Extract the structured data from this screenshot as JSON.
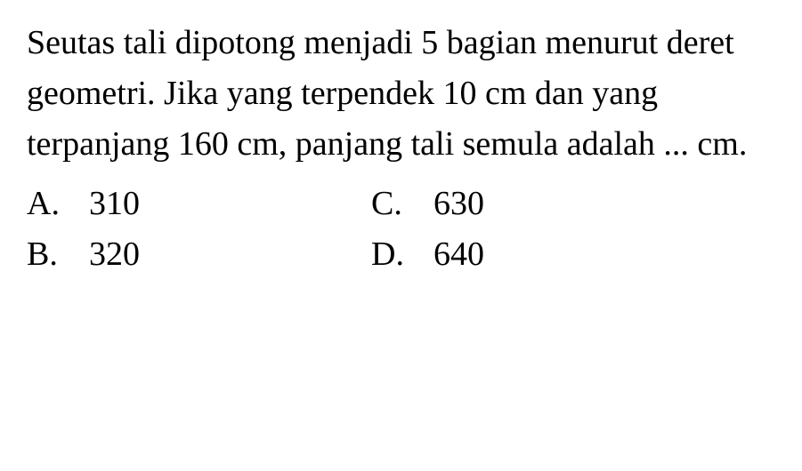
{
  "question": {
    "text": "Seutas tali dipotong menjadi 5 bagian menurut deret geometri. Jika yang terpendek 10 cm dan yang terpanjang 160 cm, panjang tali semula adalah ... cm.",
    "font_size": 38,
    "color": "#000000",
    "background_color": "#ffffff"
  },
  "options": {
    "left_column": [
      {
        "letter": "A.",
        "value": "310"
      },
      {
        "letter": "B.",
        "value": "320"
      }
    ],
    "right_column": [
      {
        "letter": "C.",
        "value": "630"
      },
      {
        "letter": "D.",
        "value": "640"
      }
    ],
    "font_size": 38,
    "color": "#000000"
  }
}
